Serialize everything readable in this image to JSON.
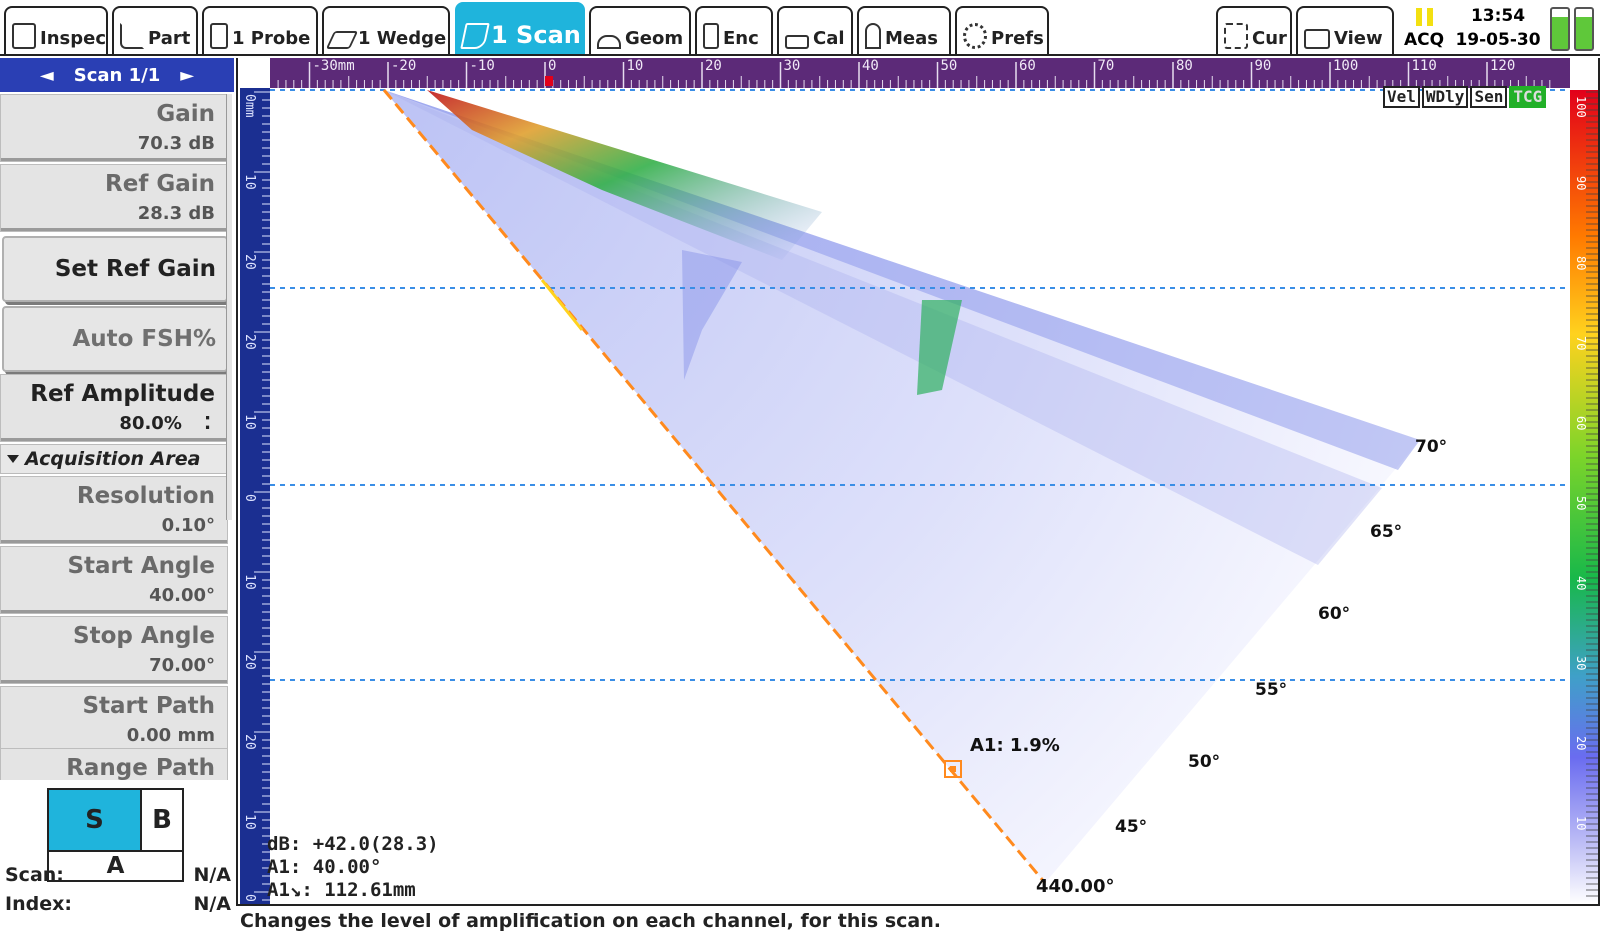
{
  "tabs": [
    {
      "name": "tab-inspec",
      "label": "Inspec",
      "icon": "clipboard-icon"
    },
    {
      "name": "tab-part",
      "label": "Part",
      "icon": "part-icon"
    },
    {
      "name": "tab-probe",
      "label": "1 Probe",
      "icon": "probe-icon"
    },
    {
      "name": "tab-wedge",
      "label": "1 Wedge",
      "icon": "wedge-icon"
    },
    {
      "name": "tab-scan",
      "label": "1 Scan",
      "icon": "scan-icon",
      "active": true
    },
    {
      "name": "tab-geom",
      "label": "Geom",
      "icon": "geometry-icon"
    },
    {
      "name": "tab-enc",
      "label": "Enc",
      "icon": "encoder-icon"
    },
    {
      "name": "tab-cal",
      "label": "Cal",
      "icon": "calibration-icon"
    },
    {
      "name": "tab-meas",
      "label": "Meas",
      "icon": "measure-icon"
    },
    {
      "name": "tab-prefs",
      "label": "Prefs",
      "icon": "gear-icon"
    },
    {
      "name": "tab-cur",
      "label": "Cur",
      "icon": "cursor-icon"
    },
    {
      "name": "tab-view",
      "label": "View",
      "icon": "layout-icon"
    }
  ],
  "status_area": {
    "aco": "ACQ",
    "time": "13:54",
    "date": "19-05-30"
  },
  "left_panel": {
    "scan_selector": "Scan 1/1",
    "gain": {
      "label": "Gain",
      "value": "70.3 dB"
    },
    "ref_gain": {
      "label": "Ref Gain",
      "value": "28.3 dB"
    },
    "set_ref_gain": "Set Ref Gain",
    "auto_fsh": "Auto FSH%",
    "ref_amplitude": {
      "label": "Ref Amplitude",
      "value": "80.0%"
    },
    "acquisition_area": "Acquisition Area",
    "resolution": {
      "label": "Resolution",
      "value": "0.10°"
    },
    "start_angle": {
      "label": "Start Angle",
      "value": "40.00°"
    },
    "stop_angle": {
      "label": "Stop Angle",
      "value": "70.00°"
    },
    "start_path": {
      "label": "Start Path",
      "value": "0.00 mm"
    },
    "range_path": {
      "label": "Range Path"
    },
    "views": {
      "s": "S",
      "b": "B",
      "a": "A"
    },
    "scan_pos": {
      "label": "Scan:",
      "value": "N/A"
    },
    "index_pos": {
      "label": "Index:",
      "value": "N/A"
    }
  },
  "ruler": {
    "x_unit": "mm",
    "x_ticks": [
      -30,
      -20,
      -10,
      0,
      10,
      20,
      30,
      40,
      50,
      60,
      70,
      80,
      90,
      100,
      110,
      120
    ],
    "y_unit": "mm",
    "y_labels": [
      "0",
      "10",
      "20",
      "20",
      "10",
      "0",
      "10",
      "20",
      "20",
      "10",
      "0"
    ],
    "color_scale_labels": [
      "100",
      "90",
      "80",
      "70",
      "60",
      "50",
      "40",
      "30",
      "20",
      "10"
    ]
  },
  "view_toggles": [
    "Vel",
    "WDly",
    "Sen",
    "TCG"
  ],
  "sector_scan": {
    "angle_labels": [
      "70°",
      "65°",
      "60°",
      "55°",
      "50°",
      "45°"
    ],
    "cursor_label": "A1: 1.9%",
    "cursor_angle_end": "4",
    "cursor_angle_text": "40.00°",
    "readout": {
      "db": "dB: +42.0(28.3)",
      "a1_angle": "A1: 40.00°",
      "a1_path": "A1↘: 112.61mm"
    }
  },
  "status_message": "Changes the level of amplification on each channel, for this scan.",
  "colors": {
    "accent": "#1fb4dc",
    "panel_blue": "#2a3fb4",
    "ruler_purple": "#5c2a78",
    "depth_ruler_blue": "#1b2f91",
    "cursor_orange": "#ff8a1e",
    "grid_dash": "#3a8ee6",
    "tcg_green": "#22b028"
  }
}
